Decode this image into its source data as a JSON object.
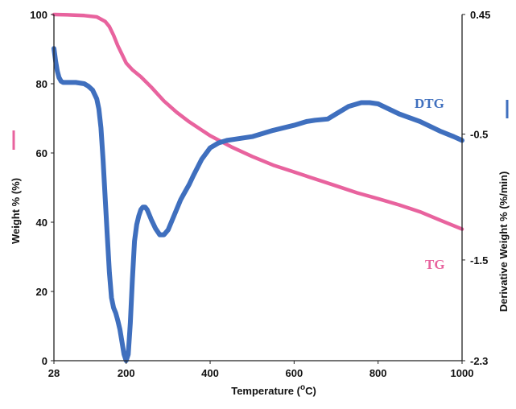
{
  "colors": {
    "tg": "#e8639e",
    "dtg": "#3f6fbe",
    "axis": "#222222"
  },
  "chart_data": {
    "type": "line",
    "title": "",
    "xlabel": "Temperature (",
    "xlabel_sup": "o",
    "xlabel_unit": "C)",
    "ylabel_left": "Weight % (%)",
    "ylabel_right": "Derivative Weight % (%/min)",
    "xlim": [
      28,
      1000
    ],
    "ylim_left": [
      0,
      100
    ],
    "ylim_right": [
      -2.3,
      0.45
    ],
    "x_ticks": [
      "28",
      "200",
      "400",
      "600",
      "800",
      "1000"
    ],
    "y_ticks_left": [
      "0",
      "20",
      "40",
      "60",
      "80",
      "100"
    ],
    "y_ticks_right": [
      "0.45",
      "-0.5",
      "-1.5",
      "-2.3"
    ],
    "series": [
      {
        "name": "TG",
        "axis": "left",
        "color": "#e8639e",
        "x": [
          28,
          60,
          100,
          130,
          150,
          160,
          170,
          180,
          190,
          200,
          215,
          235,
          260,
          290,
          320,
          350,
          400,
          450,
          500,
          550,
          600,
          650,
          700,
          750,
          800,
          850,
          900,
          950,
          1000
        ],
        "y": [
          100,
          99.9,
          99.7,
          99.3,
          98.0,
          96.5,
          94.0,
          91.0,
          88.5,
          86.0,
          84.0,
          82.0,
          79.0,
          75.0,
          71.8,
          69.0,
          65.0,
          61.8,
          59.0,
          56.5,
          54.5,
          52.5,
          50.5,
          48.5,
          46.8,
          45.0,
          43.0,
          40.5,
          38.0
        ]
      },
      {
        "name": "DTG",
        "axis": "right",
        "color": "#3f6fbe",
        "x": [
          28,
          32,
          36,
          40,
          45,
          50,
          60,
          80,
          100,
          110,
          120,
          130,
          135,
          140,
          145,
          150,
          155,
          160,
          165,
          170,
          175,
          180,
          185,
          190,
          195,
          200,
          205,
          210,
          215,
          220,
          225,
          230,
          235,
          240,
          245,
          250,
          255,
          260,
          270,
          280,
          290,
          300,
          310,
          320,
          330,
          340,
          350,
          360,
          380,
          400,
          420,
          440,
          460,
          500,
          550,
          600,
          630,
          650,
          680,
          700,
          730,
          760,
          780,
          800,
          850,
          900,
          950,
          980,
          1000
        ],
        "y": [
          0.18,
          0.08,
          0.0,
          -0.05,
          -0.08,
          -0.09,
          -0.09,
          -0.09,
          -0.1,
          -0.12,
          -0.15,
          -0.22,
          -0.3,
          -0.45,
          -0.7,
          -1.0,
          -1.3,
          -1.6,
          -1.8,
          -1.88,
          -1.92,
          -1.98,
          -2.05,
          -2.15,
          -2.25,
          -2.3,
          -2.25,
          -2.0,
          -1.65,
          -1.35,
          -1.22,
          -1.15,
          -1.1,
          -1.08,
          -1.08,
          -1.1,
          -1.14,
          -1.18,
          -1.25,
          -1.3,
          -1.3,
          -1.26,
          -1.18,
          -1.1,
          -1.02,
          -0.96,
          -0.9,
          -0.83,
          -0.7,
          -0.61,
          -0.57,
          -0.55,
          -0.54,
          -0.52,
          -0.47,
          -0.43,
          -0.4,
          -0.39,
          -0.38,
          -0.34,
          -0.28,
          -0.25,
          -0.25,
          -0.26,
          -0.34,
          -0.4,
          -0.48,
          -0.52,
          -0.55
        ]
      }
    ]
  }
}
